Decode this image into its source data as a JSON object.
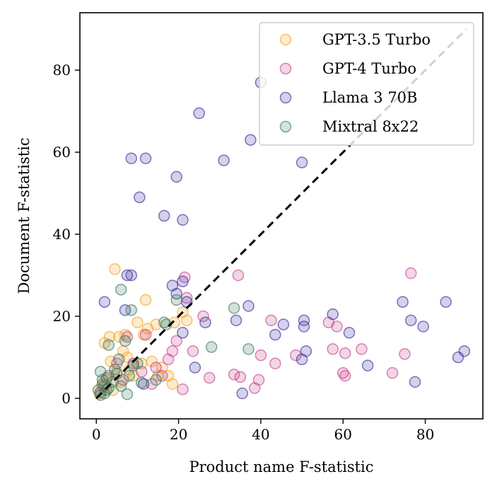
{
  "chart_data": {
    "type": "scatter",
    "xlabel": "Product name F-statistic",
    "ylabel": "Document F-statistic",
    "xlim": [
      -4,
      94
    ],
    "ylim": [
      -5,
      94
    ],
    "xticks": [
      0,
      20,
      40,
      60,
      80
    ],
    "yticks": [
      0,
      20,
      40,
      60,
      80
    ],
    "grid": false,
    "legend_position": "top-right",
    "reference_line": {
      "style": "dashed",
      "color": "#000000",
      "from": [
        0,
        0
      ],
      "to": [
        90,
        90
      ]
    },
    "series": [
      {
        "name": "GPT-3.5 Turbo",
        "color": "#f5a623",
        "points": [
          [
            0.8,
            1.2
          ],
          [
            1.5,
            3.0
          ],
          [
            2.0,
            13.5
          ],
          [
            3.2,
            15.0
          ],
          [
            4.5,
            31.5
          ],
          [
            5.0,
            6.5
          ],
          [
            5.5,
            15.0
          ],
          [
            6.0,
            4.0
          ],
          [
            6.5,
            11.5
          ],
          [
            7.0,
            15.5
          ],
          [
            7.5,
            10.0
          ],
          [
            8.0,
            7.0
          ],
          [
            9.0,
            5.5
          ],
          [
            10.0,
            18.5
          ],
          [
            11.0,
            8.5
          ],
          [
            11.5,
            15.5
          ],
          [
            12.0,
            24.0
          ],
          [
            12.5,
            17.0
          ],
          [
            13.5,
            9.0
          ],
          [
            14.5,
            18.0
          ],
          [
            15.0,
            5.5
          ],
          [
            16.0,
            7.5
          ],
          [
            17.5,
            5.5
          ],
          [
            18.5,
            3.5
          ],
          [
            19.0,
            18.5
          ],
          [
            21.0,
            21.0
          ],
          [
            22.0,
            19.0
          ],
          [
            3.5,
            9.0
          ],
          [
            4.0,
            2.0
          ],
          [
            2.5,
            4.5
          ]
        ]
      },
      {
        "name": "GPT-4 Turbo",
        "color": "#c6468c",
        "points": [
          [
            1.0,
            1.5
          ],
          [
            2.0,
            3.0
          ],
          [
            3.0,
            5.5
          ],
          [
            5.0,
            8.5
          ],
          [
            6.5,
            4.5
          ],
          [
            7.5,
            15.0
          ],
          [
            9.0,
            8.5
          ],
          [
            11.0,
            6.5
          ],
          [
            12.0,
            15.5
          ],
          [
            13.5,
            3.5
          ],
          [
            14.5,
            7.5
          ],
          [
            16.0,
            5.5
          ],
          [
            17.5,
            9.5
          ],
          [
            18.5,
            11.5
          ],
          [
            19.5,
            14.0
          ],
          [
            21.0,
            2.2
          ],
          [
            21.5,
            29.5
          ],
          [
            22.0,
            24.5
          ],
          [
            23.5,
            11.5
          ],
          [
            26.0,
            20.0
          ],
          [
            27.5,
            5.0
          ],
          [
            33.5,
            5.8
          ],
          [
            34.5,
            30.0
          ],
          [
            35.0,
            5.2
          ],
          [
            38.5,
            2.5
          ],
          [
            39.5,
            4.5
          ],
          [
            40.0,
            10.5
          ],
          [
            42.5,
            19.0
          ],
          [
            43.5,
            8.5
          ],
          [
            48.5,
            10.5
          ],
          [
            56.5,
            18.5
          ],
          [
            57.5,
            12.0
          ],
          [
            58.5,
            17.5
          ],
          [
            60.0,
            6.2
          ],
          [
            60.5,
            11.0
          ],
          [
            60.5,
            5.5
          ],
          [
            64.5,
            12.0
          ],
          [
            72.0,
            6.2
          ],
          [
            75.0,
            10.8
          ],
          [
            76.5,
            30.5
          ]
        ]
      },
      {
        "name": "Llama 3 70B",
        "color": "#3b2fa0",
        "points": [
          [
            2.0,
            23.5
          ],
          [
            7.0,
            21.5
          ],
          [
            7.5,
            30.0
          ],
          [
            8.5,
            30.0
          ],
          [
            8.5,
            58.5
          ],
          [
            10.5,
            49.0
          ],
          [
            11.5,
            3.5
          ],
          [
            12.0,
            58.5
          ],
          [
            16.5,
            44.5
          ],
          [
            18.5,
            27.5
          ],
          [
            19.5,
            54.0
          ],
          [
            19.5,
            25.5
          ],
          [
            21.0,
            43.5
          ],
          [
            21.0,
            16.0
          ],
          [
            21.0,
            28.5
          ],
          [
            22.0,
            23.5
          ],
          [
            24.0,
            7.5
          ],
          [
            25.0,
            69.5
          ],
          [
            26.5,
            18.5
          ],
          [
            31.0,
            58.0
          ],
          [
            34.0,
            19.0
          ],
          [
            35.5,
            1.2
          ],
          [
            37.0,
            22.5
          ],
          [
            37.5,
            63.0
          ],
          [
            40.0,
            77.0
          ],
          [
            43.5,
            15.5
          ],
          [
            45.5,
            18.0
          ],
          [
            50.0,
            9.5
          ],
          [
            50.0,
            57.5
          ],
          [
            50.5,
            19.0
          ],
          [
            50.5,
            17.5
          ],
          [
            51.0,
            11.5
          ],
          [
            57.5,
            20.5
          ],
          [
            61.5,
            16.0
          ],
          [
            66.0,
            8.0
          ],
          [
            74.5,
            23.5
          ],
          [
            76.5,
            19.0
          ],
          [
            77.5,
            4.0
          ],
          [
            79.5,
            17.5
          ],
          [
            85.0,
            23.5
          ],
          [
            88.0,
            10.0
          ],
          [
            89.5,
            11.5
          ]
        ]
      },
      {
        "name": "Mixtral 8x22",
        "color": "#3c7d5a",
        "points": [
          [
            0.5,
            2.0
          ],
          [
            1.0,
            0.8
          ],
          [
            1.0,
            6.5
          ],
          [
            1.5,
            3.5
          ],
          [
            2.0,
            1.2
          ],
          [
            2.5,
            5.0
          ],
          [
            3.0,
            2.5
          ],
          [
            3.0,
            13.0
          ],
          [
            4.0,
            4.0
          ],
          [
            4.5,
            7.0
          ],
          [
            5.0,
            6.0
          ],
          [
            5.5,
            9.5
          ],
          [
            6.0,
            3.0
          ],
          [
            6.0,
            26.5
          ],
          [
            7.0,
            14.0
          ],
          [
            7.5,
            1.0
          ],
          [
            8.0,
            5.5
          ],
          [
            8.5,
            21.5
          ],
          [
            9.0,
            8.0
          ],
          [
            10.0,
            8.5
          ],
          [
            11.0,
            3.8
          ],
          [
            14.5,
            4.5
          ],
          [
            16.5,
            18.5
          ],
          [
            17.0,
            18.0
          ],
          [
            19.5,
            24.0
          ],
          [
            28.0,
            12.5
          ],
          [
            33.5,
            22.0
          ],
          [
            37.0,
            12.0
          ],
          [
            1.5,
            4.5
          ],
          [
            2.5,
            2.0
          ]
        ]
      }
    ]
  }
}
